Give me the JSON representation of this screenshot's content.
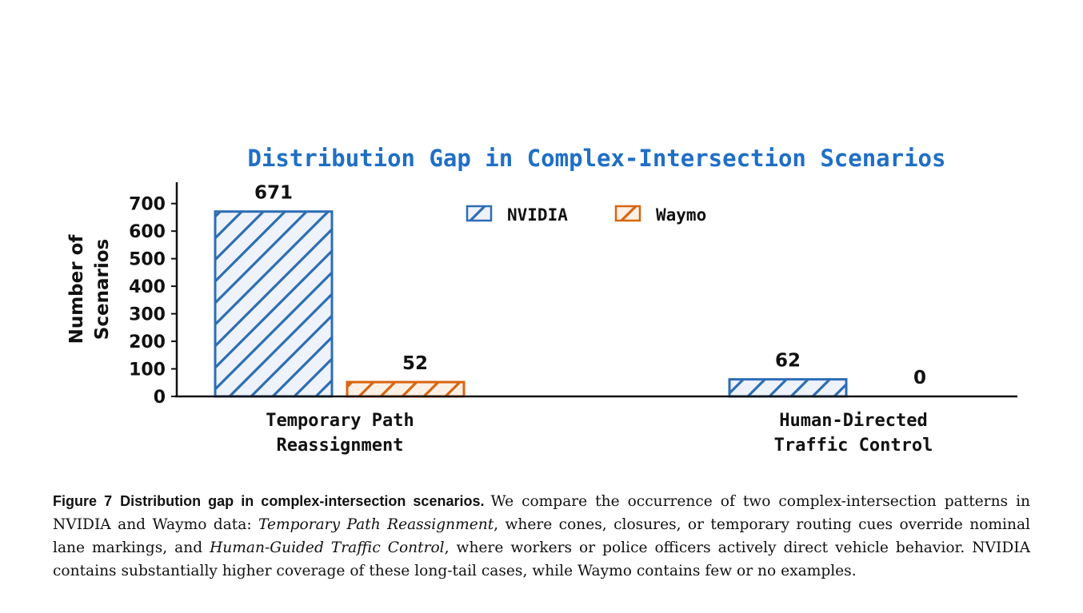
{
  "chart_data": {
    "type": "bar",
    "title": "Distribution Gap in Complex-Intersection Scenarios",
    "ylabel_lines": [
      "Number of",
      "Scenarios"
    ],
    "xlabel": "",
    "categories": [
      [
        "Temporary Path",
        "Reassignment"
      ],
      [
        "Human-Directed",
        "Traffic Control"
      ]
    ],
    "series": [
      {
        "name": "NVIDIA",
        "values": [
          671,
          62
        ],
        "color": "#2e6db4",
        "fill": "#eef2fb"
      },
      {
        "name": "Waymo",
        "values": [
          52,
          0
        ],
        "color": "#d9650f",
        "fill": "#fdf1e6"
      }
    ],
    "ylim": [
      0,
      780
    ],
    "yticks": [
      0,
      100,
      200,
      300,
      400,
      500,
      600,
      700
    ],
    "grid": false,
    "legend_position": "top-center",
    "hatch": "diagonal"
  },
  "caption": {
    "figure_label": "Figure 7",
    "heading": "Distribution gap in complex-intersection scenarios.",
    "part1": "We compare the occurrence of two complex-intersection patterns in NVIDIA and Waymo data: ",
    "italic1": "Temporary Path Reassignment",
    "part2": ", where cones, closures, or temporary routing cues override nominal lane markings, and ",
    "italic2": "Human-Guided Traffic Control",
    "part3": ", where workers or police officers actively direct vehicle behavior. NVIDIA contains substantially higher coverage of these long-tail cases, while Waymo contains few or no examples."
  }
}
